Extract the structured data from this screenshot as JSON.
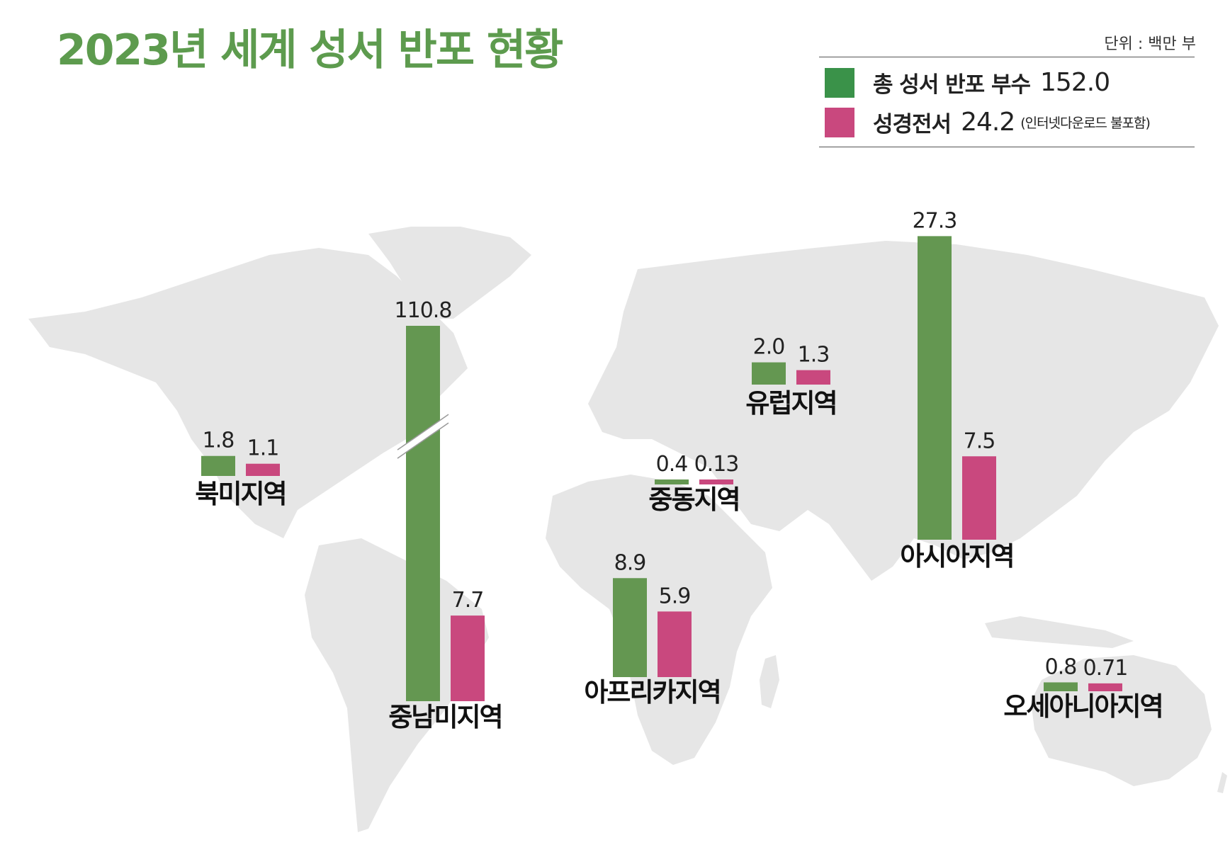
{
  "title": "2023년 세계 성서 반포 현황",
  "unit_label": "단위 : 백만 부",
  "legend": [
    {
      "label": "총 성서 반포 부수",
      "value": "152.0",
      "note": "",
      "color": "#3a9249"
    },
    {
      "label": "성경전서",
      "value": "24.2",
      "note": "(인터넷다운로드 불포함)",
      "color": "#c9487e"
    }
  ],
  "chart_data": {
    "type": "bar",
    "title": "2023년 세계 성서 반포 현황",
    "unit": "단위 : 백만 부",
    "axis_break": {
      "region": "중남미지역",
      "series": "총 성서 반포 부수"
    },
    "series": [
      {
        "name": "총 성서 반포 부수",
        "color": "#649751"
      },
      {
        "name": "성경전서",
        "color": "#c9487e"
      }
    ],
    "regions": [
      {
        "name": "북미지역",
        "values": [
          1.8,
          1.1
        ],
        "labels": [
          "1.8",
          "1.1"
        ]
      },
      {
        "name": "중남미지역",
        "values": [
          110.8,
          7.7
        ],
        "labels": [
          "110.8",
          "7.7"
        ]
      },
      {
        "name": "유럽지역",
        "values": [
          2.0,
          1.3
        ],
        "labels": [
          "2.0",
          "1.3"
        ]
      },
      {
        "name": "중동지역",
        "values": [
          0.4,
          0.13
        ],
        "labels": [
          "0.4",
          "0.13"
        ]
      },
      {
        "name": "아프리카지역",
        "values": [
          8.9,
          5.9
        ],
        "labels": [
          "8.9",
          "5.9"
        ]
      },
      {
        "name": "아시아지역",
        "values": [
          27.3,
          7.5
        ],
        "labels": [
          "27.3",
          "7.5"
        ]
      },
      {
        "name": "오세아니아지역",
        "values": [
          0.8,
          0.71
        ],
        "labels": [
          "0.8",
          "0.71"
        ]
      }
    ]
  }
}
